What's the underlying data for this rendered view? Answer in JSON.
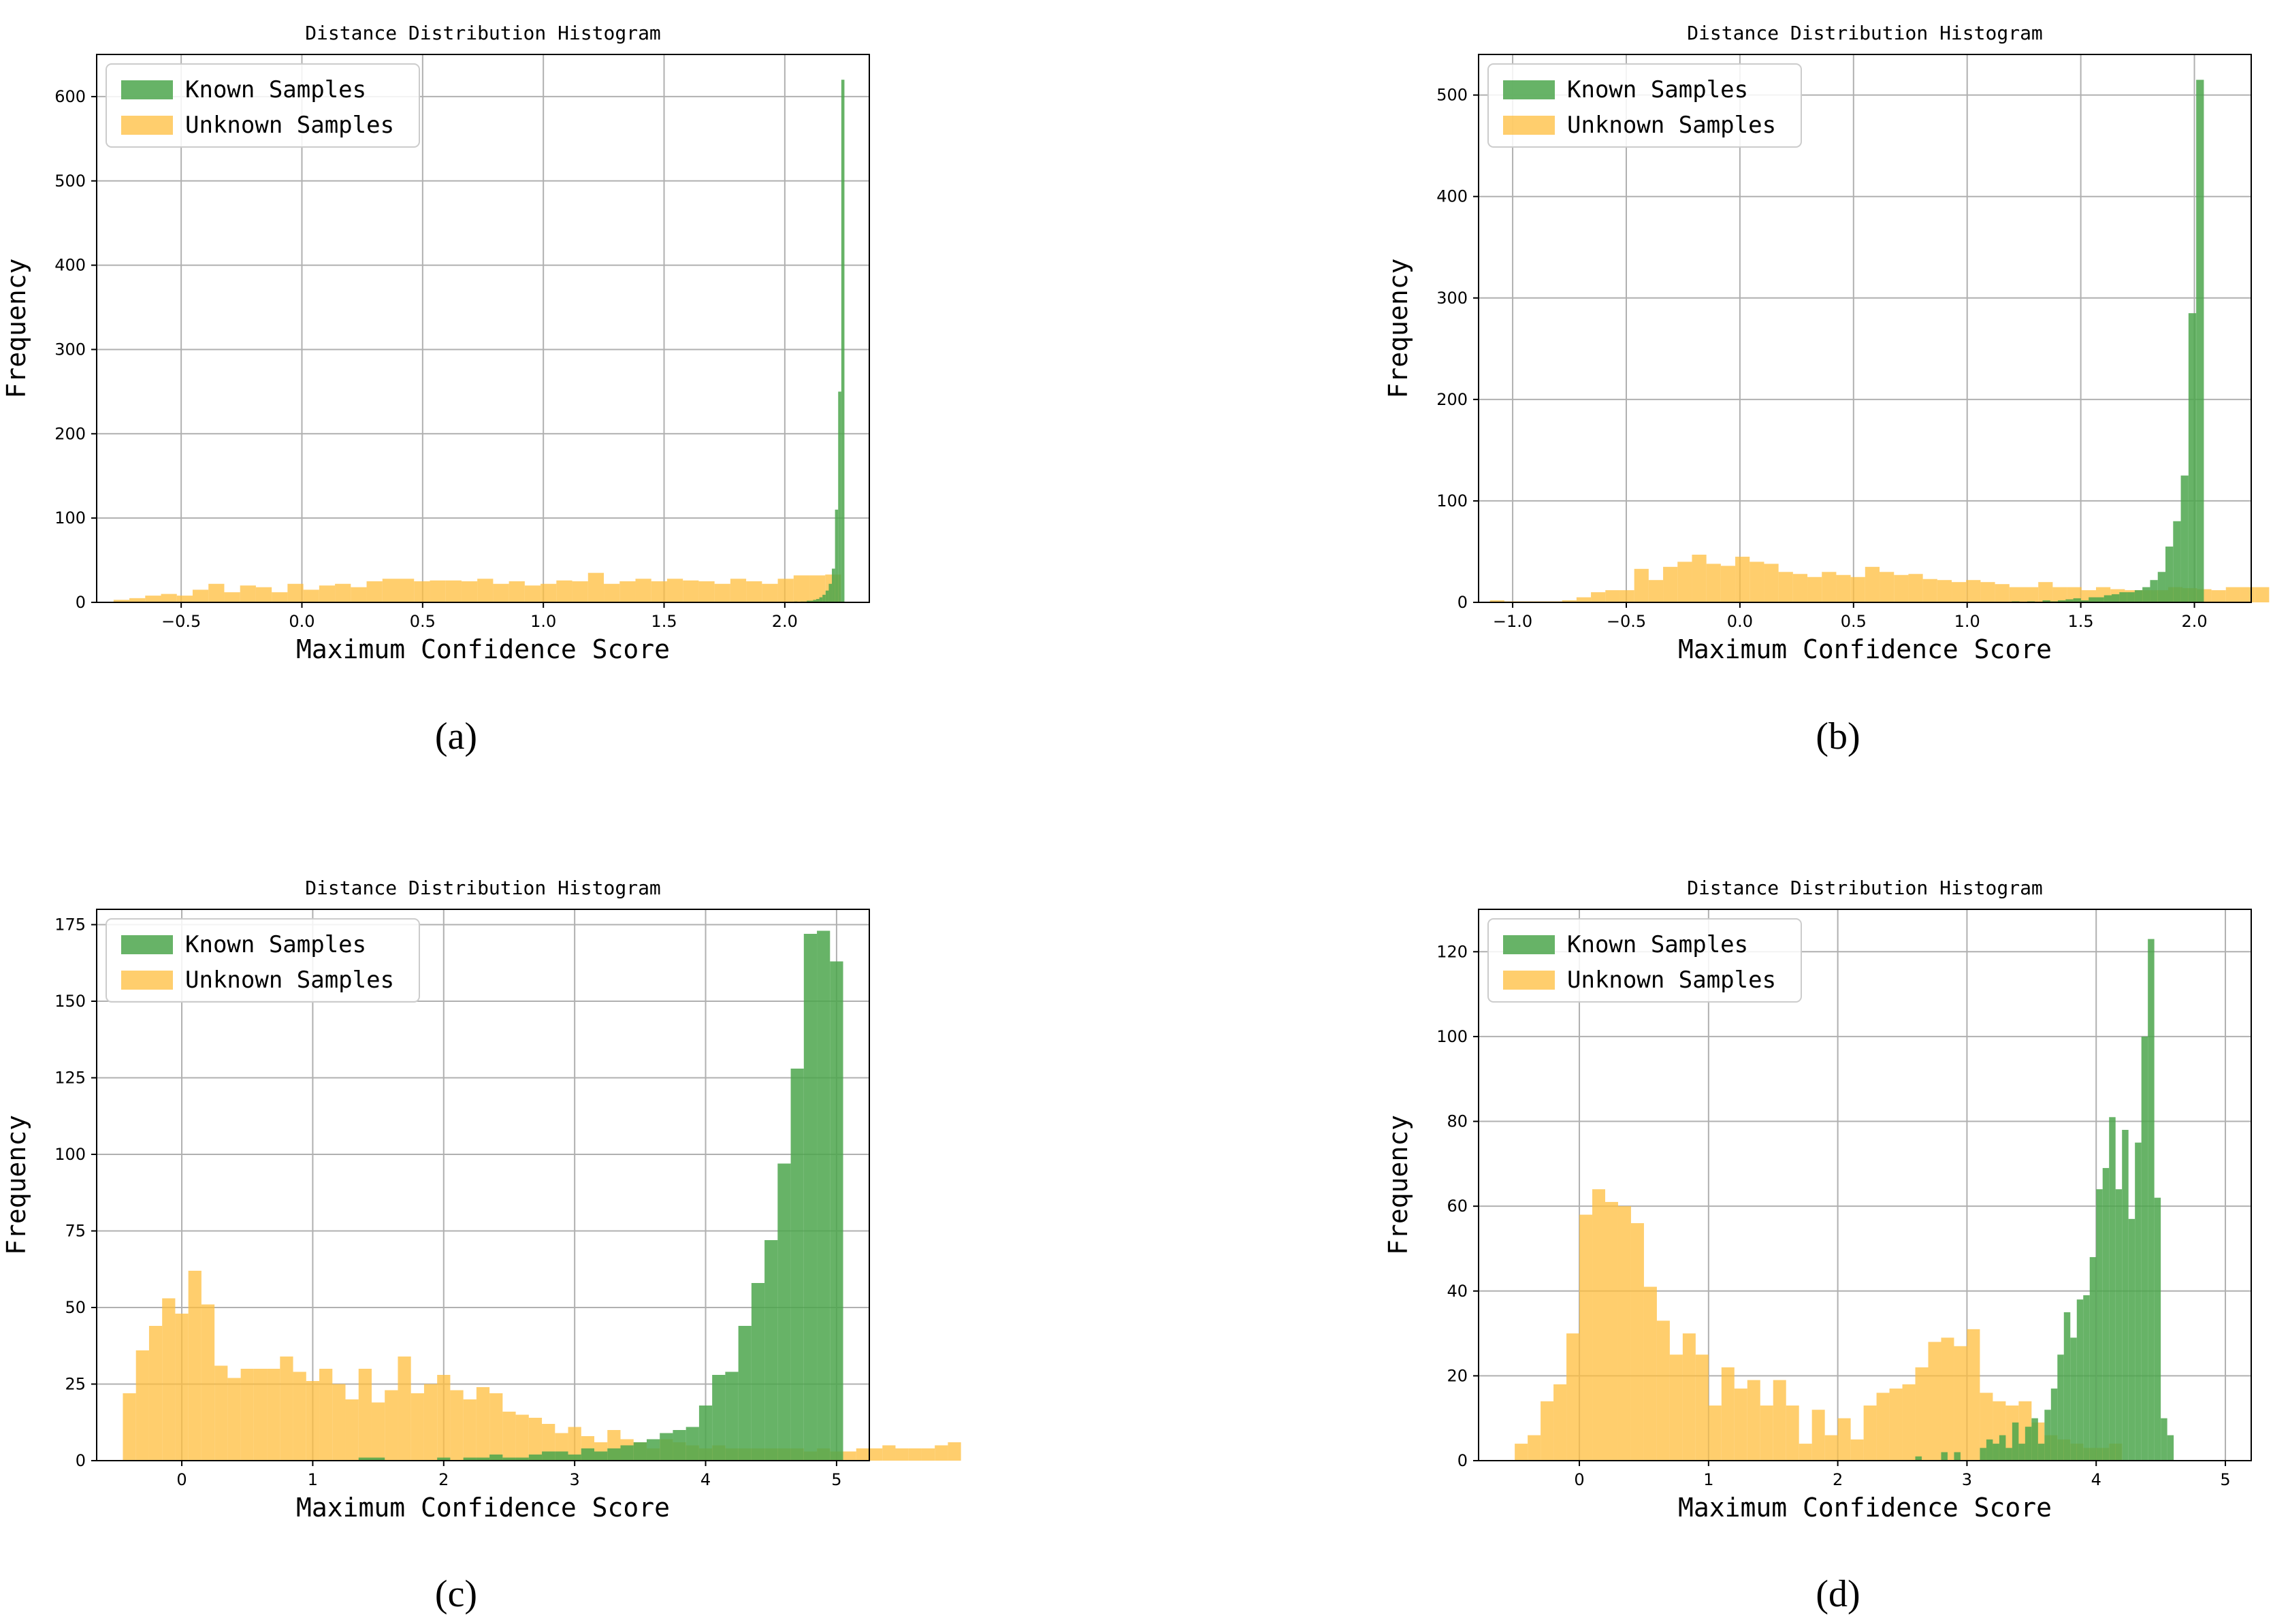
{
  "colors": {
    "known": "#4CA64C",
    "unknown": "#FFBE3C",
    "grid": "#b0b0b0",
    "axis": "#000000"
  },
  "chart_data": [
    {
      "type": "bar",
      "subtype": "histogram",
      "title": "Distance Distribution Histogram",
      "xlabel": "Maximum Confidence Score",
      "ylabel": "Frequency",
      "caption": "(a)",
      "xlim": [
        -0.85,
        2.35
      ],
      "ylim": [
        0,
        650
      ],
      "xticks": [
        -0.5,
        0.0,
        0.5,
        1.0,
        1.5,
        2.0
      ],
      "xtick_labels": [
        "−0.5",
        "0.0",
        "0.5",
        "1.0",
        "1.5",
        "2.0"
      ],
      "yticks": [
        0,
        100,
        200,
        300,
        400,
        500,
        600
      ],
      "grid": true,
      "legend_position": "top-left",
      "series": [
        {
          "name": "Known Samples",
          "color_key": "known",
          "opacity": 0.85,
          "bin_start": 2.0,
          "bin_width": 0.013,
          "values": [
            0,
            0,
            0,
            1,
            0,
            1,
            1,
            2,
            2,
            3,
            4,
            6,
            9,
            14,
            22,
            40,
            110,
            250,
            620
          ]
        },
        {
          "name": "Unknown Samples",
          "color_key": "unknown",
          "opacity": 0.75,
          "bin_start": -0.78,
          "bin_width": 0.0655,
          "values": [
            3,
            5,
            8,
            10,
            8,
            15,
            22,
            12,
            20,
            18,
            12,
            22,
            15,
            20,
            22,
            18,
            25,
            28,
            28,
            25,
            26,
            26,
            25,
            28,
            22,
            25,
            20,
            22,
            26,
            25,
            35,
            22,
            25,
            28,
            25,
            28,
            26,
            25,
            22,
            28,
            25,
            22,
            28,
            32,
            32,
            33
          ]
        }
      ]
    },
    {
      "type": "bar",
      "subtype": "histogram",
      "title": "Distance Distribution Histogram",
      "xlabel": "Maximum Confidence Score",
      "ylabel": "Frequency",
      "caption": "(b)",
      "xlim": [
        -1.15,
        2.25
      ],
      "ylim": [
        0,
        540
      ],
      "xticks": [
        -1.0,
        -0.5,
        0.0,
        0.5,
        1.0,
        1.5,
        2.0
      ],
      "xtick_labels": [
        "−1.0",
        "−0.5",
        "0.0",
        "0.5",
        "1.0",
        "1.5",
        "2.0"
      ],
      "yticks": [
        0,
        100,
        200,
        300,
        400,
        500
      ],
      "grid": true,
      "legend_position": "top-left",
      "series": [
        {
          "name": "Known Samples",
          "color_key": "known",
          "opacity": 0.85,
          "bin_start": 0.96,
          "bin_width": 0.0338,
          "values": [
            0,
            0,
            0,
            0,
            0,
            0,
            0,
            1,
            0,
            1,
            0,
            2,
            1,
            2,
            3,
            4,
            2,
            5,
            5,
            7,
            8,
            10,
            10,
            12,
            15,
            22,
            30,
            55,
            80,
            125,
            285,
            515
          ]
        },
        {
          "name": "Unknown Samples",
          "color_key": "unknown",
          "opacity": 0.75,
          "bin_start": -1.1,
          "bin_width": 0.0635,
          "values": [
            2,
            1,
            1,
            1,
            1,
            2,
            5,
            10,
            12,
            12,
            33,
            22,
            35,
            40,
            47,
            38,
            36,
            45,
            40,
            38,
            30,
            28,
            25,
            30,
            27,
            25,
            35,
            30,
            27,
            28,
            23,
            22,
            20,
            22,
            20,
            18,
            15,
            15,
            20,
            15,
            15,
            12,
            15,
            13,
            12,
            12,
            12,
            15,
            14,
            13,
            12,
            15,
            15,
            15
          ]
        }
      ]
    },
    {
      "type": "bar",
      "subtype": "histogram",
      "title": "Distance Distribution Histogram",
      "xlabel": "Maximum Confidence Score",
      "ylabel": "Frequency",
      "caption": "(c)",
      "xlim": [
        -0.65,
        5.25
      ],
      "ylim": [
        0,
        180
      ],
      "xticks": [
        0,
        1,
        2,
        3,
        4,
        5
      ],
      "xtick_labels": [
        "0",
        "1",
        "2",
        "3",
        "4",
        "5"
      ],
      "yticks": [
        0,
        25,
        50,
        75,
        100,
        125,
        150,
        175
      ],
      "grid": true,
      "legend_position": "top-left",
      "series": [
        {
          "name": "Known Samples",
          "color_key": "known",
          "opacity": 0.85,
          "bin_start": 1.35,
          "bin_width": 0.1,
          "values": [
            1,
            1,
            0,
            0,
            0,
            0,
            1,
            0,
            1,
            1,
            2,
            1,
            1,
            2,
            3,
            3,
            2,
            4,
            3,
            4,
            5,
            6,
            7,
            9,
            10,
            11,
            18,
            28,
            29,
            44,
            58,
            72,
            97,
            128,
            172,
            173,
            163
          ]
        },
        {
          "name": "Unknown Samples",
          "color_key": "unknown",
          "opacity": 0.75,
          "bin_start": -0.45,
          "bin_width": 0.1,
          "values": [
            22,
            36,
            44,
            53,
            48,
            62,
            51,
            31,
            27,
            30,
            30,
            30,
            34,
            29,
            26,
            30,
            25,
            20,
            30,
            19,
            23,
            34,
            22,
            25,
            28,
            23,
            20,
            24,
            22,
            16,
            15,
            14,
            12,
            9,
            11,
            8,
            6,
            10,
            7,
            6,
            4,
            7,
            6,
            5,
            4,
            5,
            4,
            4,
            4,
            4,
            4,
            4,
            3,
            4,
            3,
            3,
            4,
            4,
            5,
            4,
            4,
            4,
            5,
            6
          ]
        }
      ]
    },
    {
      "type": "bar",
      "subtype": "histogram",
      "title": "Distance Distribution Histogram",
      "xlabel": "Maximum Confidence Score",
      "ylabel": "Frequency",
      "caption": "(d)",
      "xlim": [
        -0.78,
        5.2
      ],
      "ylim": [
        0,
        130
      ],
      "xticks": [
        0,
        1,
        2,
        3,
        4,
        5
      ],
      "xtick_labels": [
        "0",
        "1",
        "2",
        "3",
        "4",
        "5"
      ],
      "yticks": [
        0,
        20,
        40,
        60,
        80,
        100,
        120
      ],
      "grid": true,
      "legend_position": "top-left",
      "series": [
        {
          "name": "Known Samples",
          "color_key": "known",
          "opacity": 0.85,
          "bin_start": 2.6,
          "bin_width": 0.05,
          "values": [
            1,
            0,
            0,
            0,
            2,
            0,
            2,
            0,
            0,
            0,
            3,
            5,
            4,
            6,
            3,
            9,
            4,
            8,
            10,
            4,
            12,
            17,
            25,
            35,
            29,
            38,
            39,
            48,
            64,
            69,
            81,
            64,
            78,
            57,
            75,
            100,
            123,
            62,
            10,
            6
          ]
        },
        {
          "name": "Unknown Samples",
          "color_key": "unknown",
          "opacity": 0.75,
          "bin_start": -0.5,
          "bin_width": 0.1,
          "values": [
            4,
            6,
            14,
            18,
            30,
            58,
            64,
            61,
            60,
            56,
            41,
            33,
            25,
            30,
            25,
            13,
            22,
            17,
            19,
            13,
            19,
            13,
            4,
            12,
            6,
            10,
            5,
            13,
            16,
            17,
            18,
            22,
            28,
            29,
            27,
            31,
            16,
            14,
            13,
            14,
            9,
            6,
            5,
            4,
            3,
            3,
            4
          ]
        }
      ]
    }
  ]
}
